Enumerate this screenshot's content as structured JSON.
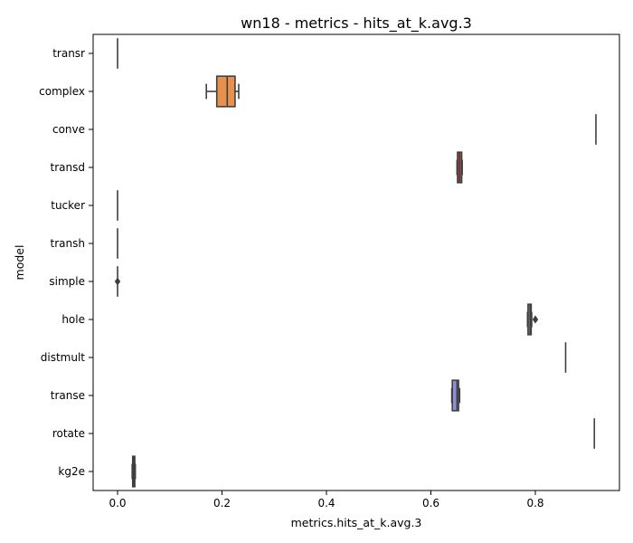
{
  "chart_data": {
    "type": "box",
    "title": "wn18 - metrics - hits_at_k.avg.3",
    "xlabel": "metrics.hits_at_k.avg.3",
    "ylabel": "model",
    "xlim": [
      -0.045,
      0.96
    ],
    "xticks": [
      0.0,
      0.2,
      0.4,
      0.6,
      0.8
    ],
    "xtick_labels": [
      "0.0",
      "0.2",
      "0.4",
      "0.6",
      "0.8"
    ],
    "grid": false,
    "categories": [
      "transr",
      "complex",
      "conve",
      "transd",
      "tucker",
      "transh",
      "simple",
      "hole",
      "distmult",
      "transe",
      "rotate",
      "kg2e"
    ],
    "series": [
      {
        "category": "transr",
        "min": 0.0,
        "q1": 0.0,
        "median": 0.0,
        "q3": 0.0,
        "max": 0.0,
        "outliers": [],
        "color": "#4c72b0"
      },
      {
        "category": "complex",
        "min": 0.17,
        "q1": 0.19,
        "median": 0.21,
        "q3": 0.225,
        "max": 0.232,
        "outliers": [],
        "color": "#e8914f"
      },
      {
        "category": "conve",
        "min": 0.915,
        "q1": 0.915,
        "median": 0.916,
        "q3": 0.917,
        "max": 0.917,
        "outliers": [],
        "color": "#55a868"
      },
      {
        "category": "transd",
        "min": 0.65,
        "q1": 0.651,
        "median": 0.655,
        "q3": 0.659,
        "max": 0.66,
        "outliers": [],
        "color": "#c44e52"
      },
      {
        "category": "tucker",
        "min": 0.0,
        "q1": 0.0,
        "median": 0.0,
        "q3": 0.0,
        "max": 0.0,
        "outliers": [],
        "color": "#8172b3"
      },
      {
        "category": "transh",
        "min": 0.0,
        "q1": 0.0,
        "median": 0.0,
        "q3": 0.0,
        "max": 0.0,
        "outliers": [],
        "color": "#937860"
      },
      {
        "category": "simple",
        "min": 0.0,
        "q1": 0.0,
        "median": 0.0,
        "q3": 0.0,
        "max": 0.0,
        "outliers": [
          0.0
        ],
        "color": "#da8bc3"
      },
      {
        "category": "hole",
        "min": 0.785,
        "q1": 0.786,
        "median": 0.79,
        "q3": 0.792,
        "max": 0.793,
        "outliers": [
          0.8
        ],
        "color": "#8c8c8c"
      },
      {
        "category": "distmult",
        "min": 0.857,
        "q1": 0.857,
        "median": 0.858,
        "q3": 0.859,
        "max": 0.859,
        "outliers": [],
        "color": "#ccb974"
      },
      {
        "category": "transe",
        "min": 0.64,
        "q1": 0.641,
        "median": 0.65,
        "q3": 0.653,
        "max": 0.655,
        "outliers": [],
        "color": "#8d8fd6"
      },
      {
        "category": "rotate",
        "min": 0.913,
        "q1": 0.913,
        "median": 0.913,
        "q3": 0.913,
        "max": 0.913,
        "outliers": [],
        "color": "#4c72b0"
      },
      {
        "category": "kg2e",
        "min": 0.028,
        "q1": 0.029,
        "median": 0.031,
        "q3": 0.033,
        "max": 0.034,
        "outliers": [],
        "color": "#dd8452"
      }
    ]
  }
}
